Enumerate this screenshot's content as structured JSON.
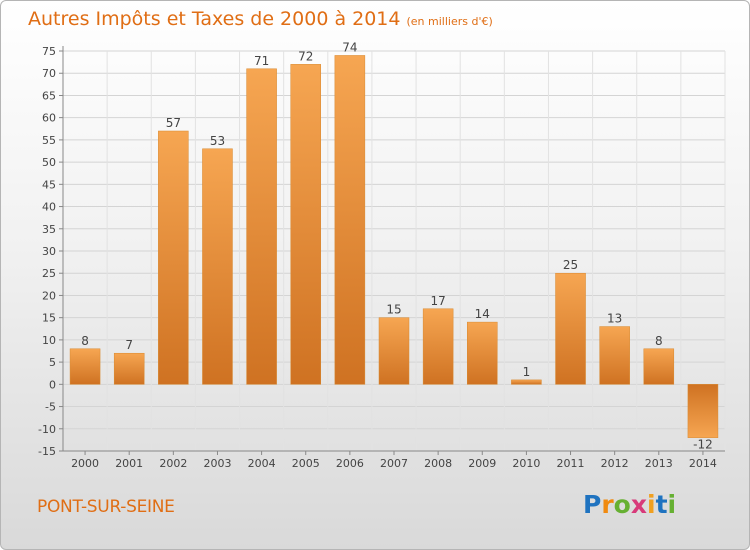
{
  "title": "Autres Impôts et Taxes de 2000 à 2014",
  "subtitle": "(en milliers d'€)",
  "location": "PONT-SUR-SEINE",
  "brand": {
    "letters": [
      "P",
      "r",
      "o",
      "x",
      "i",
      "t",
      "i"
    ],
    "colors": [
      "#1f73c0",
      "#f08a10",
      "#66b032",
      "#d83a7a",
      "#f0a020",
      "#1f73c0",
      "#66b032"
    ]
  },
  "colors": {
    "bar_light": "#f6a652",
    "bar_dark": "#cf7222",
    "title": "#e06e15"
  },
  "chart_data": {
    "type": "bar",
    "categories": [
      "2000",
      "2001",
      "2002",
      "2003",
      "2004",
      "2005",
      "2006",
      "2007",
      "2008",
      "2009",
      "2010",
      "2011",
      "2012",
      "2013",
      "2014"
    ],
    "values": [
      8,
      7,
      57,
      53,
      71,
      72,
      74,
      15,
      17,
      14,
      1,
      25,
      13,
      8,
      -12
    ],
    "data_labels": [
      "8",
      "7",
      "57",
      "53",
      "71",
      "72",
      "74",
      "15",
      "17",
      "14",
      "1",
      "25",
      "13",
      "8",
      "-12"
    ],
    "yticks": [
      -15,
      -10,
      -5,
      0,
      5,
      10,
      15,
      20,
      25,
      30,
      35,
      40,
      45,
      50,
      55,
      60,
      65,
      70,
      75
    ],
    "ylim": [
      -15,
      75
    ],
    "grid": true,
    "legend": "none"
  }
}
